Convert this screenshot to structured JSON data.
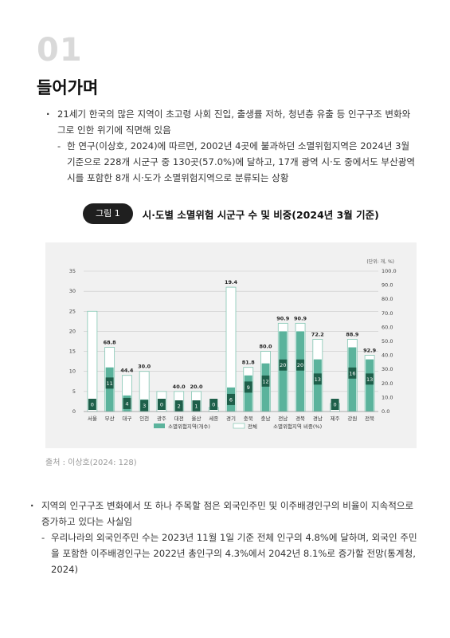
{
  "section": {
    "number": "01",
    "title": "들어가며"
  },
  "intro": {
    "bullet1": "21세기 한국의 많은 지역이 초고령 사회 진입, 출생률 저하, 청년층 유출 등 인구구조 변화와 그로 인한 위기에 직면해 있음",
    "dash1": "한 연구(이상호, 2024)에 따르면, 2002년 4곳에 불과하던 소멸위험지역은 2024년 3월 기준으로 228개 시군구 중 130곳(57.0%)에 달하고, 17개 광역 시·도 중에서도 부산광역시를 포함한 8개 시·도가 소멸위험지역으로 분류되는 상황"
  },
  "figure": {
    "badge": "그림 1",
    "title": "시·도별 소멸위험 시군구 수 및 비중(2024년 3월 기준)",
    "source": "출처 : 이상호(2024: 128)"
  },
  "chart_data": {
    "type": "bar",
    "unit_note": "(단위: 개, %)",
    "categories": [
      "서울",
      "부산",
      "대구",
      "인천",
      "광주",
      "대전",
      "울산",
      "세종",
      "경기",
      "충북",
      "충남",
      "전남",
      "경북",
      "경남",
      "제주",
      "강원",
      "전북"
    ],
    "series": [
      {
        "name": "소멸위험지역(개수)",
        "type": "bar",
        "axis": "left",
        "values": [
          0,
          11,
          4,
          3,
          0,
          2,
          1,
          0,
          6,
          9,
          12,
          20,
          20,
          13,
          0,
          16,
          13
        ]
      },
      {
        "name": "전체",
        "type": "bar",
        "axis": "left",
        "values": [
          25,
          16,
          9,
          10,
          5,
          5,
          5,
          1,
          31,
          11,
          15,
          22,
          22,
          18,
          2,
          18,
          14
        ]
      },
      {
        "name": "소멸위험지역 비중(%)",
        "type": "label",
        "axis": "right",
        "values": [
          null,
          68.8,
          44.4,
          30.0,
          null,
          40.0,
          20.0,
          null,
          19.4,
          81.8,
          80.0,
          90.9,
          90.9,
          72.2,
          null,
          88.9,
          92.9
        ]
      }
    ],
    "ylim": [
      0,
      35
    ],
    "yticks": [
      0,
      5,
      10,
      15,
      20,
      25,
      30,
      35
    ],
    "y2lim": [
      0,
      100
    ],
    "y2ticks": [
      "0.0",
      "10.0",
      "20.0",
      "30.0",
      "40.0",
      "50.0",
      "60.0",
      "70.0",
      "80.0",
      "90.0",
      "100.0"
    ],
    "legend_position": "bottom",
    "colors": {
      "risk": "#5bb39c",
      "risk_dark": "#1e5f4a",
      "total_border": "#82c6b2",
      "background": "#f1f1f1"
    }
  },
  "body2": {
    "bullet1": "지역의 인구구조 변화에서 또 하나 주목할 점은 외국인주민 및 이주배경인구의 비율이 지속적으로 증가하고 있다는 사실임",
    "dash1": "우리나라의 외국인주민 수는 2023년 11월 1일 기준 전체 인구의 4.8%에 달하며, 외국인 주민을 포함한 이주배경인구는 2022년 총인구의 4.3%에서 2042년 8.1%로 증가할 전망(통계청, 2024)"
  }
}
